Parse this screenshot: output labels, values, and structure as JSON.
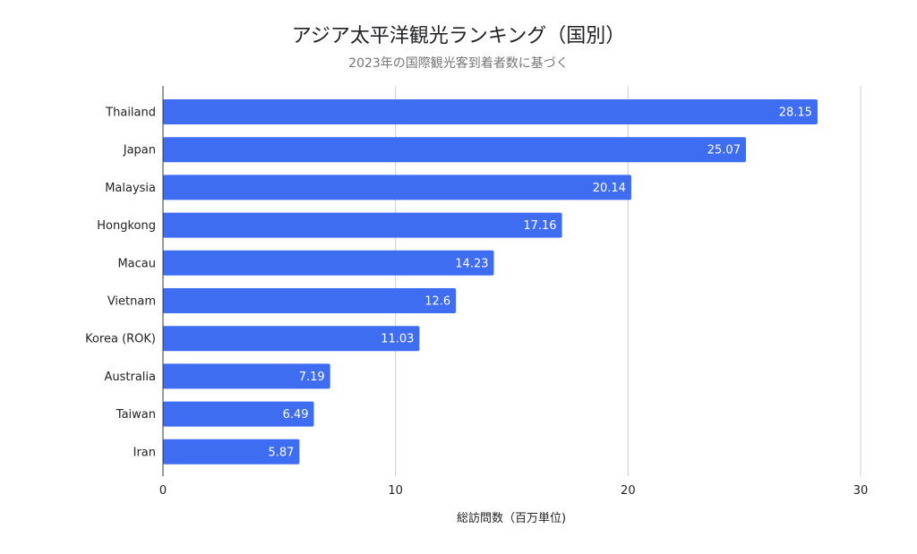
{
  "chart_data": {
    "type": "bar",
    "orientation": "horizontal",
    "title": "アジア太平洋観光ランキング（国別）",
    "subtitle": "2023年の国際観光客到着者数に基づく",
    "xlabel": "総訪問数（百万単位)",
    "ylabel": "",
    "categories": [
      "Thailand",
      "Japan",
      "Malaysia",
      "Hongkong",
      "Macau",
      "Vietnam",
      "Korea (ROK)",
      "Australia",
      "Taiwan",
      "Iran"
    ],
    "values": [
      28.15,
      25.07,
      20.14,
      17.16,
      14.23,
      12.6,
      11.03,
      7.19,
      6.49,
      5.87
    ],
    "data_labels": [
      "28.15",
      "25.07",
      "20.14",
      "17.16",
      "14.23",
      "12.6",
      "11.03",
      "7.19",
      "6.49",
      "5.87"
    ],
    "xlim": [
      0,
      30
    ],
    "xticks": [
      0,
      10,
      20,
      30
    ],
    "grid": true,
    "legend": "none",
    "bar_color": "#3e6df2"
  }
}
